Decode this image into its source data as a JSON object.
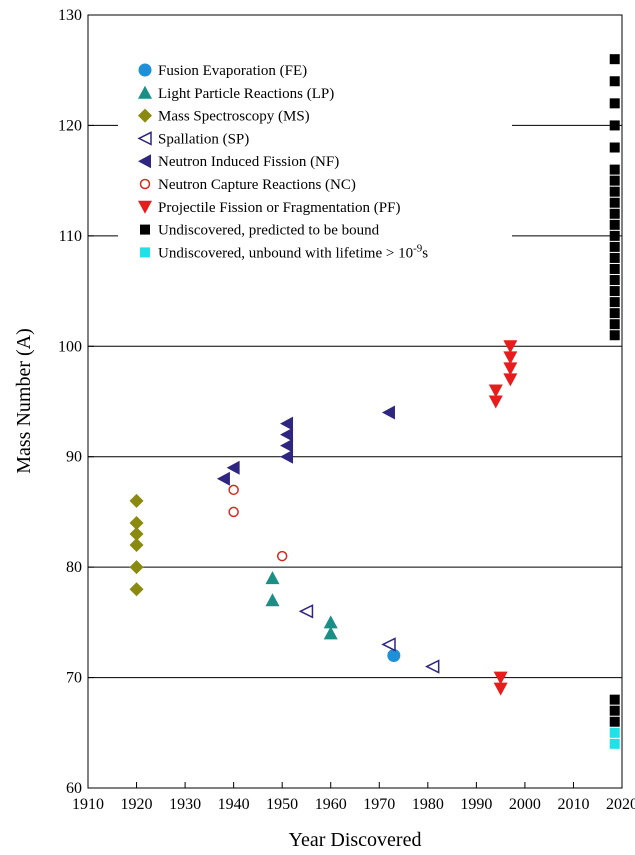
{
  "chart_data": {
    "type": "scatter",
    "xlabel": "Year Discovered",
    "ylabel": "Mass Number (A)",
    "xlim": [
      1910,
      2020
    ],
    "ylim": [
      60,
      130
    ],
    "xticks": [
      1910,
      1920,
      1930,
      1940,
      1950,
      1960,
      1970,
      1980,
      1990,
      2000,
      2010,
      2020
    ],
    "yticks": [
      60,
      70,
      80,
      90,
      100,
      110,
      120,
      130
    ],
    "grid": "horizontal",
    "legend_position": "top-left",
    "series": [
      {
        "name": "Fusion Evaporation (FE)",
        "marker": "circle",
        "color": "#1e90d8",
        "points": [
          [
            1973,
            72
          ]
        ]
      },
      {
        "name": "Light Particle Reactions (LP)",
        "marker": "triangle-up",
        "color": "#1a8f86",
        "points": [
          [
            1948,
            79
          ],
          [
            1948,
            77
          ],
          [
            1960,
            75
          ],
          [
            1960,
            74
          ]
        ]
      },
      {
        "name": "Mass Spectroscopy (MS)",
        "marker": "diamond",
        "color": "#8a8a10",
        "points": [
          [
            1920,
            86
          ],
          [
            1920,
            84
          ],
          [
            1920,
            83
          ],
          [
            1920,
            82
          ],
          [
            1920,
            80
          ],
          [
            1920,
            78
          ]
        ]
      },
      {
        "name": "Spallation (SP)",
        "marker": "triangle-left-open",
        "color": "#2e2680",
        "points": [
          [
            1955,
            76
          ],
          [
            1972,
            73
          ],
          [
            1981,
            71
          ]
        ]
      },
      {
        "name": "Neutron Induced Fission (NF)",
        "marker": "triangle-left",
        "color": "#2e2680",
        "points": [
          [
            1938,
            88
          ],
          [
            1940,
            89
          ],
          [
            1951,
            93
          ],
          [
            1951,
            92
          ],
          [
            1951,
            91
          ],
          [
            1951,
            90
          ],
          [
            1972,
            94
          ]
        ]
      },
      {
        "name": "Neutron Capture Reactions (NC)",
        "marker": "circle-open",
        "color": "#d42a20",
        "points": [
          [
            1940,
            87
          ],
          [
            1940,
            85
          ],
          [
            1950,
            81
          ]
        ]
      },
      {
        "name": "Projectile Fission or Fragmentation (PF)",
        "marker": "triangle-down",
        "color": "#e81c1c",
        "points": [
          [
            1994,
            96
          ],
          [
            1994,
            95
          ],
          [
            1997,
            100
          ],
          [
            1997,
            99
          ],
          [
            1997,
            98
          ],
          [
            1997,
            97
          ],
          [
            1995,
            70
          ],
          [
            1995,
            69
          ]
        ]
      },
      {
        "name": "Undiscovered, predicted to be bound",
        "marker": "square",
        "color": "#000000",
        "points": [
          [
            2018.5,
            126
          ],
          [
            2018.5,
            124
          ],
          [
            2018.5,
            122
          ],
          [
            2018.5,
            120
          ],
          [
            2018.5,
            118
          ],
          [
            2018.5,
            116
          ],
          [
            2018.5,
            115
          ],
          [
            2018.5,
            114
          ],
          [
            2018.5,
            113
          ],
          [
            2018.5,
            112
          ],
          [
            2018.5,
            111
          ],
          [
            2018.5,
            110
          ],
          [
            2018.5,
            109
          ],
          [
            2018.5,
            108
          ],
          [
            2018.5,
            107
          ],
          [
            2018.5,
            106
          ],
          [
            2018.5,
            105
          ],
          [
            2018.5,
            104
          ],
          [
            2018.5,
            103
          ],
          [
            2018.5,
            102
          ],
          [
            2018.5,
            101
          ],
          [
            2018.5,
            68
          ],
          [
            2018.5,
            67
          ],
          [
            2018.5,
            66
          ]
        ]
      },
      {
        "name": "Undiscovered, unbound with lifetime > 10",
        "name_superscript": "-9",
        "name_suffix": "s",
        "marker": "square",
        "color": "#22e0e8",
        "points": [
          [
            2018.5,
            65
          ],
          [
            2018.5,
            64
          ]
        ]
      }
    ]
  }
}
